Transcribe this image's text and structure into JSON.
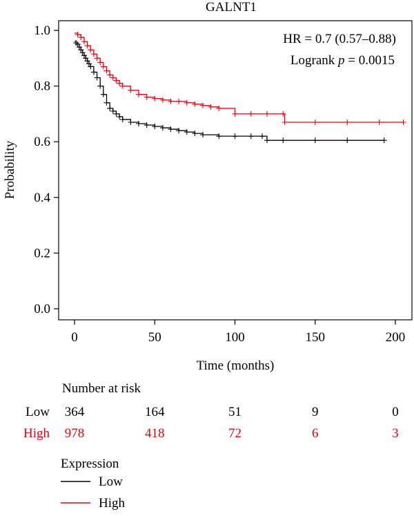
{
  "chart_data": {
    "type": "line",
    "title": "GALNT1",
    "xlabel": "Time (months)",
    "ylabel": "Probability",
    "xlim": [
      -5,
      205
    ],
    "ylim": [
      0,
      1.0
    ],
    "xticks": [
      0,
      50,
      100,
      150,
      200
    ],
    "yticks": [
      "0.0",
      "0.2",
      "0.4",
      "0.6",
      "0.8",
      "1.0"
    ],
    "annotations": {
      "hr": "HR = 0.7 (0.57–0.88)",
      "logrank_prefix": "Logrank ",
      "logrank_p": "p",
      "logrank_value": " = 0.0015"
    },
    "series": [
      {
        "name": "Low",
        "color": "#000000",
        "x": [
          0,
          1,
          2,
          3,
          4,
          5,
          6,
          7,
          8,
          9,
          10,
          12,
          14,
          16,
          18,
          20,
          22,
          24,
          26,
          28,
          30,
          35,
          40,
          45,
          50,
          55,
          60,
          65,
          70,
          75,
          80,
          90,
          100,
          110,
          117,
          120,
          130,
          150,
          170,
          193
        ],
        "y": [
          0.96,
          0.955,
          0.95,
          0.94,
          0.93,
          0.92,
          0.91,
          0.9,
          0.89,
          0.88,
          0.87,
          0.85,
          0.83,
          0.8,
          0.77,
          0.74,
          0.72,
          0.71,
          0.7,
          0.69,
          0.68,
          0.67,
          0.665,
          0.66,
          0.655,
          0.65,
          0.645,
          0.64,
          0.635,
          0.63,
          0.625,
          0.62,
          0.62,
          0.62,
          0.62,
          0.605,
          0.605,
          0.605,
          0.605,
          0.605
        ]
      },
      {
        "name": "High",
        "color": "#e8000b",
        "x": [
          0,
          2,
          4,
          6,
          8,
          10,
          12,
          14,
          16,
          18,
          20,
          22,
          24,
          26,
          28,
          30,
          35,
          40,
          45,
          50,
          55,
          60,
          65,
          70,
          75,
          80,
          85,
          90,
          100,
          110,
          120,
          130,
          131,
          150,
          170,
          190,
          205
        ],
        "y": [
          0.99,
          0.985,
          0.975,
          0.96,
          0.945,
          0.93,
          0.915,
          0.9,
          0.885,
          0.87,
          0.855,
          0.84,
          0.83,
          0.82,
          0.81,
          0.8,
          0.785,
          0.77,
          0.76,
          0.755,
          0.75,
          0.745,
          0.745,
          0.74,
          0.735,
          0.73,
          0.725,
          0.72,
          0.7,
          0.7,
          0.7,
          0.7,
          0.67,
          0.67,
          0.67,
          0.67,
          0.67
        ]
      }
    ]
  },
  "risk_table": {
    "title": "Number at risk",
    "rows": [
      {
        "label": "Low",
        "color": "#000000",
        "values": [
          "364",
          "164",
          "51",
          "9",
          "0"
        ]
      },
      {
        "label": "High",
        "color": "#e8000b",
        "values": [
          "978",
          "418",
          "72",
          "6",
          "3"
        ]
      }
    ]
  },
  "legend": {
    "title": "Expression",
    "items": [
      {
        "label": "Low",
        "color": "#000000"
      },
      {
        "label": "High",
        "color": "#e8000b"
      }
    ]
  }
}
